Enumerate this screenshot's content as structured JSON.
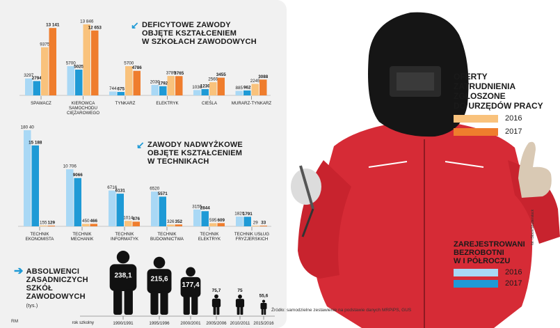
{
  "colors": {
    "light_orange": "#f9c27c",
    "orange": "#ef7d2d",
    "light_blue": "#a9d8f5",
    "blue": "#1e9ad6",
    "panel_bg": "#f1f1f1"
  },
  "section1": {
    "title_lines": [
      "DEFICYTOWE ZAWODY",
      "OBJĘTE KSZTAŁCENIEM",
      "W SZKOŁACH ZAWODOWYCH"
    ],
    "icon": "arrow-down-left-icon"
  },
  "section2": {
    "title_lines": [
      "ZAWODY NADWYŻKOWE",
      "OBJĘTE KSZTAŁCENIEM",
      "W TECHNIKACH"
    ],
    "icon": "arrow-down-left-icon"
  },
  "section3": {
    "title_lines": [
      "ABSOLWENCI",
      "ZASADNICZYCH",
      "SZKÓŁ",
      "ZAWODOWYCH"
    ],
    "unit": "(tys.)",
    "icon": "arrow-right-icon",
    "axis_label": "rok szkolny"
  },
  "legend_offers": {
    "title_lines": [
      "OFERTY",
      "ZATRUDNIENIA",
      "ZGŁOSZONE",
      "DO URZĘDÓW PRACY"
    ],
    "items": [
      {
        "label": "2016",
        "color": "#f9c27c"
      },
      {
        "label": "2017",
        "color": "#ef7d2d"
      }
    ]
  },
  "legend_unemployed": {
    "title_lines": [
      "ZAREJESTROWANI",
      "BEZROBOTNI",
      "W I PÓŁROCZU"
    ],
    "items": [
      {
        "label": "2016",
        "color": "#a9d8f5"
      },
      {
        "label": "2017",
        "color": "#1e9ad6"
      }
    ]
  },
  "source": "Źródło: samodzielne zestawienie na podstawie danych MRPiPS, GUS",
  "credit": "fot. iStock/Shutterstock",
  "author": "RM",
  "chart_data": [
    {
      "type": "bar",
      "title": "DEFICYTOWE ZAWODY OBJĘTE KSZTAŁCENIEM W SZKOŁACH ZAWODOWYCH",
      "categories": [
        "SPAWACZ",
        "KIEROWCA SAMOCHODU CIĘŻAROWEGO",
        "TYNKARZ",
        "ELEKTRYK",
        "CIEŚLA",
        "MURARZ-TYNKARZ"
      ],
      "series": [
        {
          "name": "ZAREJESTROWANI BEZROBOTNI W I PÓŁROCZU 2016",
          "values": [
            3297,
            5700,
            744,
            2030,
            1036,
            885
          ],
          "labels": [
            "3297",
            "5700",
            "744",
            "2030",
            "1036",
            "885"
          ]
        },
        {
          "name": "ZAREJESTROWANI BEZROBOTNI W I PÓŁROCZU 2017",
          "values": [
            2794,
            5025,
            675,
            1792,
            1230,
            962
          ],
          "labels": [
            "2794",
            "5025",
            "675",
            "1792",
            "1230",
            "962"
          ]
        },
        {
          "name": "OFERTY ZATRUDNIENIA ZGŁOSZONE DO URZĘDÓW PRACY 2016",
          "values": [
            9375,
            13846,
            5700,
            3789,
            2569,
            2245
          ],
          "labels": [
            "9375",
            "13 846",
            "5700",
            "3789",
            "2569",
            "2245"
          ]
        },
        {
          "name": "OFERTY ZATRUDNIENIA ZGŁOSZONE DO URZĘDÓW PRACY 2017",
          "values": [
            13141,
            12653,
            4786,
            3765,
            3455,
            3088
          ],
          "labels": [
            "13 141",
            "12 653",
            "4786",
            "3765",
            "3455",
            "3088"
          ]
        }
      ]
    },
    {
      "type": "bar",
      "title": "ZAWODY NADWYŻKOWE OBJĘTE KSZTAŁCENIEM W TECHNIKACH",
      "categories": [
        "TECHNIK EKONOMISTA",
        "TECHNIK MECHANIK",
        "TECHNIK INFORMATYK",
        "TECHNIK BUDOWNICTWA",
        "TECHNIK ELEKTRYK",
        "TECHNIK USŁUG FRYZJERSKICH"
      ],
      "series": [
        {
          "name": "ZAREJESTROWANI BEZROBOTNI W I PÓŁROCZU 2016",
          "values": [
            18040,
            10706,
            6716,
            6520,
            3155,
            1820
          ],
          "labels": [
            "180 40",
            "10 706",
            "6716",
            "6520",
            "3155",
            "1820"
          ]
        },
        {
          "name": "ZAREJESTROWANI BEZROBOTNI W I PÓŁROCZU 2017",
          "values": [
            15188,
            9066,
            6131,
            5571,
            2844,
            1791
          ],
          "labels": [
            "15 188",
            "9066",
            "6131",
            "5571",
            "2844",
            "1791"
          ]
        },
        {
          "name": "OFERTY ZATRUDNIENIA ZGŁOSZONE DO URZĘDÓW PRACY 2016",
          "values": [
            155,
            450,
            1014,
            326,
            595,
            29
          ],
          "labels": [
            "155",
            "450",
            "1014",
            "326",
            "595",
            "29"
          ]
        },
        {
          "name": "OFERTY ZATRUDNIENIA ZGŁOSZONE DO URZĘDÓW PRACY 2017",
          "values": [
            129,
            466,
            876,
            352,
            609,
            33
          ],
          "labels": [
            "129",
            "466",
            "876",
            "352",
            "609",
            "33"
          ]
        }
      ]
    },
    {
      "type": "bar",
      "title": "ABSOLWENCI ZASADNICZYCH SZKÓŁ ZAWODOWYCH",
      "unit": "(tys.)",
      "xlabel": "rok szkolny",
      "categories": [
        "1990/1991",
        "1995/1996",
        "2000/2001",
        "2005/2006",
        "2010/2011",
        "2015/2016"
      ],
      "values": [
        238.1,
        215.6,
        177.4,
        75.7,
        75,
        55.6
      ],
      "labels": [
        "238,1",
        "215,6",
        "177,4",
        "75,7",
        "75",
        "55,6"
      ]
    }
  ]
}
